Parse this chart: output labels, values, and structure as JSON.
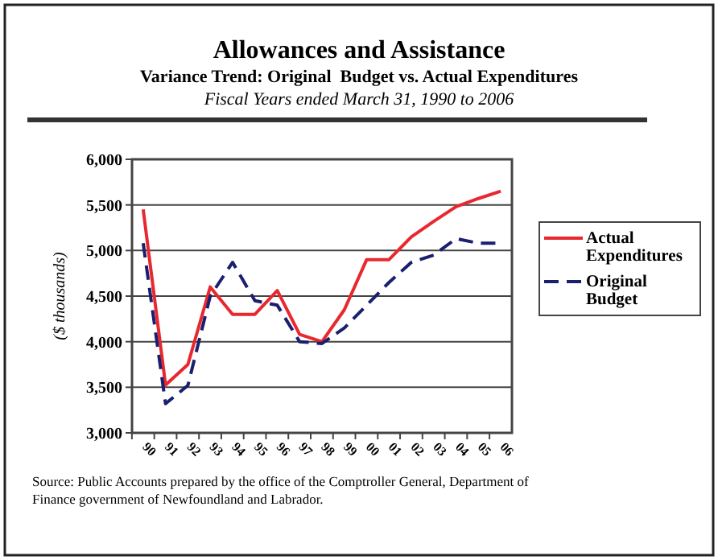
{
  "chart_data": {
    "type": "line",
    "title": "Allowances and Assistance",
    "subtitle": "Variance Trend: Original  Budget vs. Actual Expenditures",
    "annotations": [
      "Fiscal Years ended March 31, 1990 to 2006",
      "Source: Public Accounts prepared by the office of the Comptroller General,  Department of Finance government of Newfoundland and Labrador."
    ],
    "ylabel": "($ thousands)",
    "categories": [
      "90",
      "91",
      "92",
      "93",
      "94",
      "95",
      "96",
      "97",
      "98",
      "99",
      "00",
      "01",
      "02",
      "03",
      "04",
      "05",
      "06"
    ],
    "series": [
      {
        "name": "Actual Expenditures",
        "color": "#e8282e",
        "line_style": "solid",
        "values": [
          5450,
          3525,
          3750,
          4600,
          4300,
          4300,
          4560,
          4080,
          4000,
          4350,
          4900,
          4900,
          5150,
          5320,
          5480,
          5570,
          5650
        ]
      },
      {
        "name": "Original Budget",
        "color": "#1a1f6e",
        "line_style": "dashed",
        "values": [
          5080,
          3320,
          3520,
          4500,
          4870,
          4450,
          4400,
          4000,
          3980,
          4150,
          4400,
          4650,
          4870,
          4950,
          5130,
          5080,
          5080
        ]
      }
    ],
    "ylim": [
      3000,
      6000
    ],
    "yticks": [
      {
        "value": 3000,
        "label": "3,000"
      },
      {
        "value": 3500,
        "label": "3,500"
      },
      {
        "value": 4000,
        "label": "4,000"
      },
      {
        "value": 4500,
        "label": "4,500"
      },
      {
        "value": 5000,
        "label": "5,000"
      },
      {
        "value": 5500,
        "label": "5,500"
      },
      {
        "value": 6000,
        "label": "6,000"
      }
    ],
    "grid": "y",
    "legend": "right",
    "marker": "none"
  }
}
